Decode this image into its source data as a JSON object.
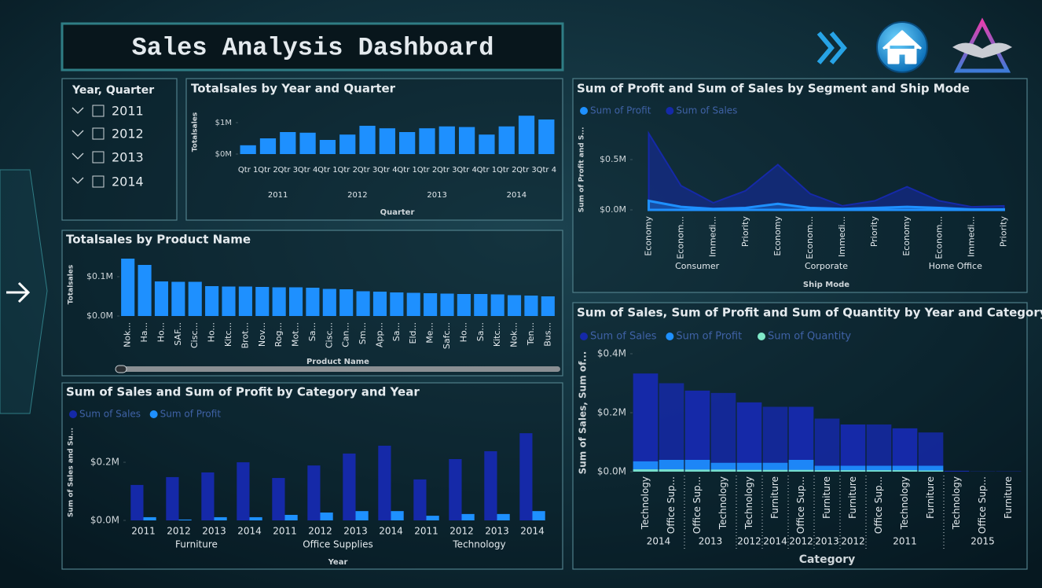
{
  "header": {
    "title": "Sales Analysis Dashboard"
  },
  "slicer": {
    "title": "Year, Quarter",
    "items": [
      "2011",
      "2012",
      "2013",
      "2014"
    ]
  },
  "chart_data": [
    {
      "type": "bar",
      "title": "Totalsales by Year and Quarter",
      "x_label": "Quarter",
      "y_label": "Totalsales",
      "categories": [
        "Qtr 1",
        "Qtr 2",
        "Qtr 3",
        "Qtr 4",
        "Qtr 1",
        "Qtr 2",
        "Qtr 3",
        "Qtr 4",
        "Qtr 1",
        "Qtr 2",
        "Qtr 3",
        "Qtr 4",
        "Qtr 1",
        "Qtr 2",
        "Qtr 3",
        "Qtr 4"
      ],
      "groups": [
        "2011",
        "2011",
        "2011",
        "2011",
        "2012",
        "2012",
        "2012",
        "2012",
        "2013",
        "2013",
        "2013",
        "2013",
        "2014",
        "2014",
        "2014",
        "2014"
      ],
      "values": [
        280000,
        500000,
        700000,
        680000,
        450000,
        620000,
        900000,
        820000,
        700000,
        820000,
        880000,
        860000,
        620000,
        880000,
        1220000,
        1100000
      ],
      "color": "#1e90ff",
      "ylim": [
        0,
        1400000
      ],
      "yticks": [
        {
          "value": 0,
          "label": "$0M"
        },
        {
          "value": 1000000,
          "label": "$1M"
        }
      ]
    },
    {
      "type": "bar",
      "title": "Totalsales by Product Name",
      "x_label": "Product Name",
      "y_label": "Totalsales",
      "categories": [
        "Nok...",
        "Ha...",
        "Ho...",
        "SAF...",
        "Cisc...",
        "Ho...",
        "Kitc...",
        "Brot...",
        "Nov...",
        "Rog...",
        "Mot...",
        "Sa...",
        "Cisc...",
        "Can...",
        "Sm...",
        "App...",
        "Sa...",
        "Eld...",
        "Me...",
        "Safc...",
        "Ho...",
        "Sa...",
        "Kitc...",
        "Nok...",
        "Ten...",
        "Bus..."
      ],
      "values": [
        146000,
        130000,
        88000,
        87000,
        87000,
        76000,
        75000,
        75000,
        74000,
        73000,
        73000,
        72000,
        69000,
        68000,
        63000,
        62000,
        60000,
        59000,
        58000,
        57000,
        56000,
        56000,
        55000,
        53000,
        52000,
        50000
      ],
      "color": "#1e90ff",
      "ylim": [
        0,
        160000
      ],
      "yticks": [
        {
          "value": 0,
          "label": "$0.0M"
        },
        {
          "value": 100000,
          "label": "$0.1M"
        }
      ]
    },
    {
      "type": "grouped_bar",
      "title": "Sum of Sales and Sum of Profit by Category and Year",
      "x_label": "Year",
      "y_label": "Sum of Sales and Su...",
      "categories": [
        "2011",
        "2012",
        "2013",
        "2014",
        "2011",
        "2012",
        "2013",
        "2014",
        "2011",
        "2012",
        "2013",
        "2014"
      ],
      "groups": [
        "Furniture",
        "Furniture",
        "Furniture",
        "Furniture",
        "Office Supplies",
        "Office Supplies",
        "Office Supplies",
        "Office Supplies",
        "Technology",
        "Technology",
        "Technology",
        "Technology"
      ],
      "series": [
        {
          "name": "Sum of Sales",
          "color": "#1529a8",
          "values": [
            122000,
            149000,
            165000,
            200000,
            146000,
            189000,
            230000,
            257000,
            141000,
            211000,
            238000,
            300000
          ]
        },
        {
          "name": "Sum of Profit",
          "color": "#1e90ff",
          "values": [
            11000,
            3000,
            11000,
            11000,
            19000,
            27000,
            32000,
            32000,
            16000,
            22000,
            22000,
            32000
          ]
        }
      ],
      "ylim": [
        0,
        330000
      ],
      "yticks": [
        {
          "value": 0,
          "label": "$0.0M"
        },
        {
          "value": 200000,
          "label": "$0.2M"
        }
      ]
    },
    {
      "type": "area",
      "title": "Sum of Profit and Sum of Sales by Segment and Ship Mode",
      "x_label": "Ship Mode",
      "y_label": "Sum of Profit and S...",
      "categories": [
        "Economy",
        "Econom...",
        "Immedi...",
        "Priority",
        "Economy",
        "Econom...",
        "Immedi...",
        "Priority",
        "Economy",
        "Econom...",
        "Immedi...",
        "Priority"
      ],
      "groups": [
        "Consumer",
        "Consumer",
        "Consumer",
        "Consumer",
        "Corporate",
        "Corporate",
        "Corporate",
        "Corporate",
        "Home Office",
        "Home Office",
        "Home Office",
        "Home Office"
      ],
      "series": [
        {
          "name": "Sum of Profit",
          "color": "#1e90ff",
          "values": [
            90000,
            30000,
            10000,
            20000,
            60000,
            20000,
            10000,
            20000,
            30000,
            20000,
            5000,
            5000
          ]
        },
        {
          "name": "Sum of Sales",
          "color": "#1529a8",
          "values": [
            760000,
            240000,
            70000,
            190000,
            450000,
            160000,
            40000,
            90000,
            230000,
            90000,
            30000,
            40000
          ]
        }
      ],
      "ylim": [
        0,
        800000
      ],
      "yticks": [
        {
          "value": 0,
          "label": "$0.0M"
        },
        {
          "value": 500000,
          "label": "$0.5M"
        }
      ]
    },
    {
      "type": "ribbon",
      "title": "Sum of Sales, Sum of Profit and Sum of Quantity by Year and Category",
      "x_label": "Category",
      "y_label": "Sum of Sales, Sum of...",
      "categories": [
        "Technology",
        "Office Sup...",
        "Office Sup...",
        "Technology",
        "Technology",
        "Furniture",
        "Office Sup...",
        "Furniture",
        "Furniture",
        "Office Sup...",
        "Technology",
        "Furniture",
        "Technology",
        "Office Sup...",
        "Furniture"
      ],
      "groups": [
        "2014",
        "2014",
        "2013",
        "2013",
        "2012",
        "2014",
        "2012",
        "2013",
        "2012",
        "2011",
        "2011",
        "2011",
        "2015",
        "2015",
        "2015"
      ],
      "series": [
        {
          "name": "Sum of Sales",
          "color": "#1529a8",
          "values": [
            333000,
            300000,
            275000,
            267000,
            235000,
            220000,
            220000,
            180000,
            160000,
            160000,
            147000,
            133000,
            3000,
            1000,
            1000
          ]
        },
        {
          "name": "Sum of Profit",
          "color": "#1e90ff",
          "values": [
            35000,
            40000,
            40000,
            30000,
            30000,
            30000,
            40000,
            20000,
            20000,
            20000,
            20000,
            20000,
            0,
            0,
            0
          ]
        },
        {
          "name": "Sum of Quantity",
          "color": "#7fe8c8",
          "values": [
            8000,
            8000,
            7000,
            7000,
            6000,
            6000,
            6000,
            5000,
            5000,
            5000,
            5000,
            4000,
            0,
            0,
            0
          ]
        }
      ],
      "ylim": [
        0,
        400000
      ],
      "yticks": [
        {
          "value": 0,
          "label": "$0.0M"
        },
        {
          "value": 200000,
          "label": "$0.2M"
        },
        {
          "value": 400000,
          "label": "$0.4M"
        }
      ]
    }
  ]
}
